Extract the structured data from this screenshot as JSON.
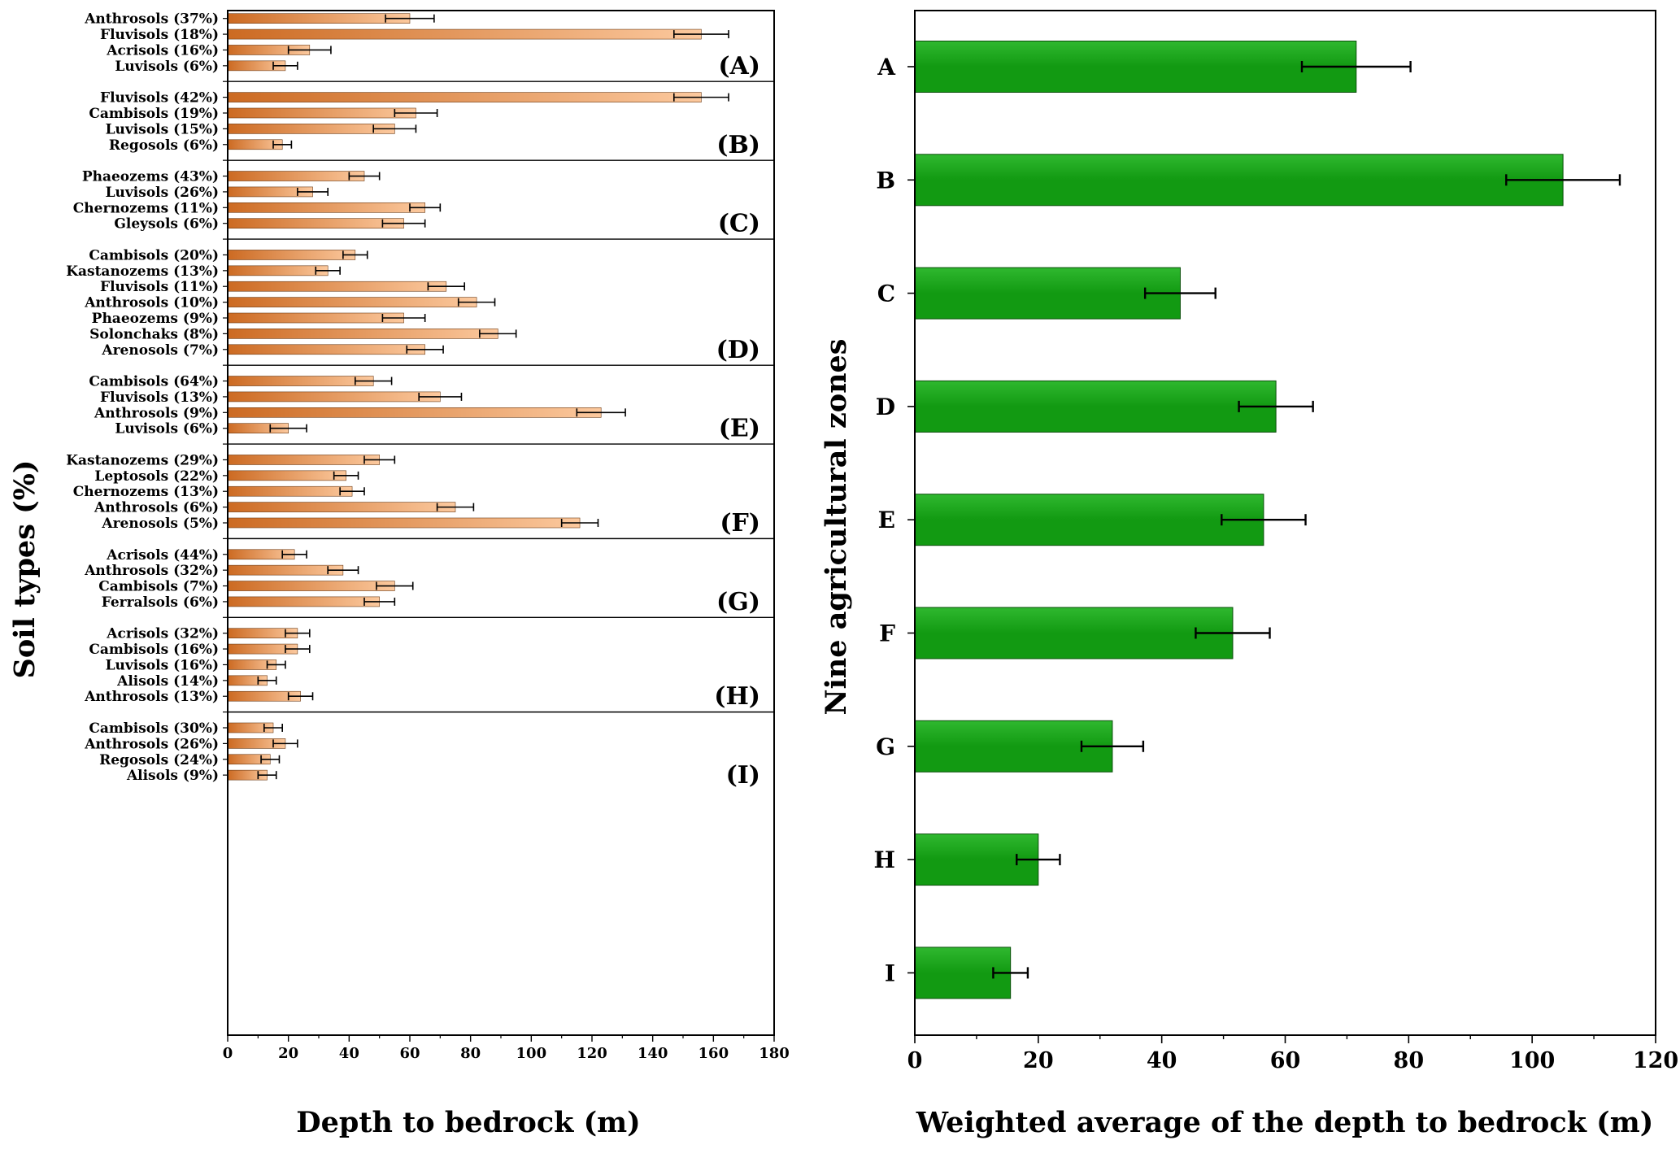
{
  "colors": {
    "left_bar_dark": "#cc6a22",
    "left_bar_light": "#fcc99e",
    "right_bar": "#129a12",
    "right_bar_light": "#2fb82f",
    "axis": "#000000"
  },
  "chart_data": [
    {
      "type": "bar",
      "orientation": "horizontal",
      "title": "",
      "xlabel": "Depth to bedrock (m)",
      "ylabel": "Soil types (%)",
      "xlim": [
        0,
        180
      ],
      "xticks": [
        "0",
        "20",
        "40",
        "60",
        "80",
        "100",
        "120",
        "140",
        "160",
        "180"
      ],
      "panels": [
        {
          "letter": "(A)",
          "bars": [
            {
              "label": "Anthrosols (37%)",
              "value": 60,
              "error": 8
            },
            {
              "label": "Fluvisols (18%)",
              "value": 156,
              "error": 9
            },
            {
              "label": "Acrisols (16%)",
              "value": 27,
              "error": 7
            },
            {
              "label": "Luvisols (6%)",
              "value": 19,
              "error": 4
            }
          ]
        },
        {
          "letter": "(B)",
          "bars": [
            {
              "label": "Fluvisols (42%)",
              "value": 156,
              "error": 9
            },
            {
              "label": "Cambisols (19%)",
              "value": 62,
              "error": 7
            },
            {
              "label": "Luvisols (15%)",
              "value": 55,
              "error": 7
            },
            {
              "label": "Regosols (6%)",
              "value": 18,
              "error": 3
            }
          ]
        },
        {
          "letter": "(C)",
          "bars": [
            {
              "label": "Phaeozems (43%)",
              "value": 45,
              "error": 5
            },
            {
              "label": "Luvisols (26%)",
              "value": 28,
              "error": 5
            },
            {
              "label": "Chernozems (11%)",
              "value": 65,
              "error": 5
            },
            {
              "label": "Gleysols (6%)",
              "value": 58,
              "error": 7
            }
          ]
        },
        {
          "letter": "(D)",
          "bars": [
            {
              "label": "Cambisols (20%)",
              "value": 42,
              "error": 4
            },
            {
              "label": "Kastanozems (13%)",
              "value": 33,
              "error": 4
            },
            {
              "label": "Fluvisols (11%)",
              "value": 72,
              "error": 6
            },
            {
              "label": "Anthrosols (10%)",
              "value": 82,
              "error": 6
            },
            {
              "label": "Phaeozems (9%)",
              "value": 58,
              "error": 7
            },
            {
              "label": "Solonchaks (8%)",
              "value": 89,
              "error": 6
            },
            {
              "label": "Arenosols (7%)",
              "value": 65,
              "error": 6
            }
          ]
        },
        {
          "letter": "(E)",
          "bars": [
            {
              "label": "Cambisols (64%)",
              "value": 48,
              "error": 6
            },
            {
              "label": "Fluvisols (13%)",
              "value": 70,
              "error": 7
            },
            {
              "label": "Anthrosols (9%)",
              "value": 123,
              "error": 8
            },
            {
              "label": "Luvisols (6%)",
              "value": 20,
              "error": 6
            }
          ]
        },
        {
          "letter": "(F)",
          "bars": [
            {
              "label": "Kastanozems (29%)",
              "value": 50,
              "error": 5
            },
            {
              "label": "Leptosols (22%)",
              "value": 39,
              "error": 4
            },
            {
              "label": "Chernozems (13%)",
              "value": 41,
              "error": 4
            },
            {
              "label": "Anthrosols (6%)",
              "value": 75,
              "error": 6
            },
            {
              "label": "Arenosols (5%)",
              "value": 116,
              "error": 6
            }
          ]
        },
        {
          "letter": "(G)",
          "bars": [
            {
              "label": "Acrisols (44%)",
              "value": 22,
              "error": 4
            },
            {
              "label": "Anthrosols (32%)",
              "value": 38,
              "error": 5
            },
            {
              "label": "Cambisols (7%)",
              "value": 55,
              "error": 6
            },
            {
              "label": "Ferralsols (6%)",
              "value": 50,
              "error": 5
            }
          ]
        },
        {
          "letter": "(H)",
          "bars": [
            {
              "label": "Acrisols (32%)",
              "value": 23,
              "error": 4
            },
            {
              "label": "Cambisols (16%)",
              "value": 23,
              "error": 4
            },
            {
              "label": "Luvisols (16%)",
              "value": 16,
              "error": 3
            },
            {
              "label": "Alisols (14%)",
              "value": 13,
              "error": 3
            },
            {
              "label": "Anthrosols (13%)",
              "value": 24,
              "error": 4
            }
          ]
        },
        {
          "letter": "(I)",
          "bars": [
            {
              "label": "Cambisols (30%)",
              "value": 15,
              "error": 3
            },
            {
              "label": "Anthrosols (26%)",
              "value": 19,
              "error": 4
            },
            {
              "label": "Regosols (24%)",
              "value": 14,
              "error": 3
            },
            {
              "label": "Alisols (9%)",
              "value": 13,
              "error": 3
            }
          ]
        }
      ]
    },
    {
      "type": "bar",
      "orientation": "horizontal",
      "title": "",
      "xlabel": "Weighted average of the depth to bedrock (m)",
      "ylabel": "Nine agricultural zones",
      "xlim": [
        0,
        120
      ],
      "xticks": [
        "0",
        "20",
        "40",
        "60",
        "80",
        "100",
        "120"
      ],
      "categories": [
        "A",
        "B",
        "C",
        "D",
        "E",
        "F",
        "G",
        "H",
        "I"
      ],
      "values": [
        71.5,
        105,
        43,
        58.5,
        56.5,
        51.5,
        32,
        20,
        15.5
      ],
      "errors": [
        8.8,
        9.2,
        5.7,
        6,
        6.8,
        6,
        5,
        3.5,
        2.8
      ]
    }
  ]
}
